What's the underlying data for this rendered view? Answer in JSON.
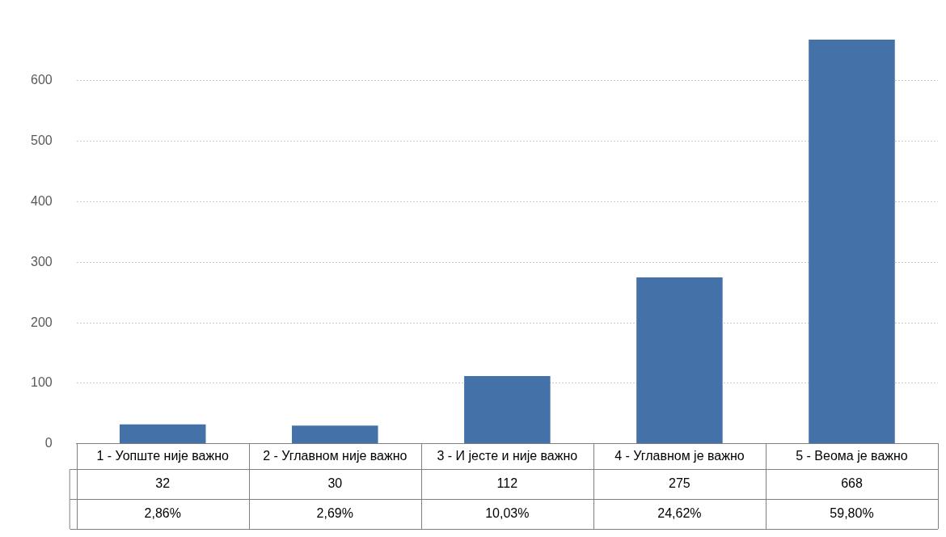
{
  "chart_data": {
    "type": "bar",
    "categories": [
      "1 - Уопште није важно",
      "2 - Углавном није важно",
      "3 - И јесте и није важно",
      "4 - Углавном је важно",
      "5 - Веома је важно"
    ],
    "values": [
      32,
      30,
      112,
      275,
      668
    ],
    "color": "#4472a8",
    "ylim": [
      0,
      670
    ],
    "yticks": [
      0,
      100,
      200,
      300,
      400,
      500,
      600
    ],
    "grid": "y",
    "legend": false,
    "data_labels": true,
    "annotations": [
      "2,86%",
      "2,69%",
      "10,03%",
      "24,62%",
      "59,80%"
    ]
  }
}
